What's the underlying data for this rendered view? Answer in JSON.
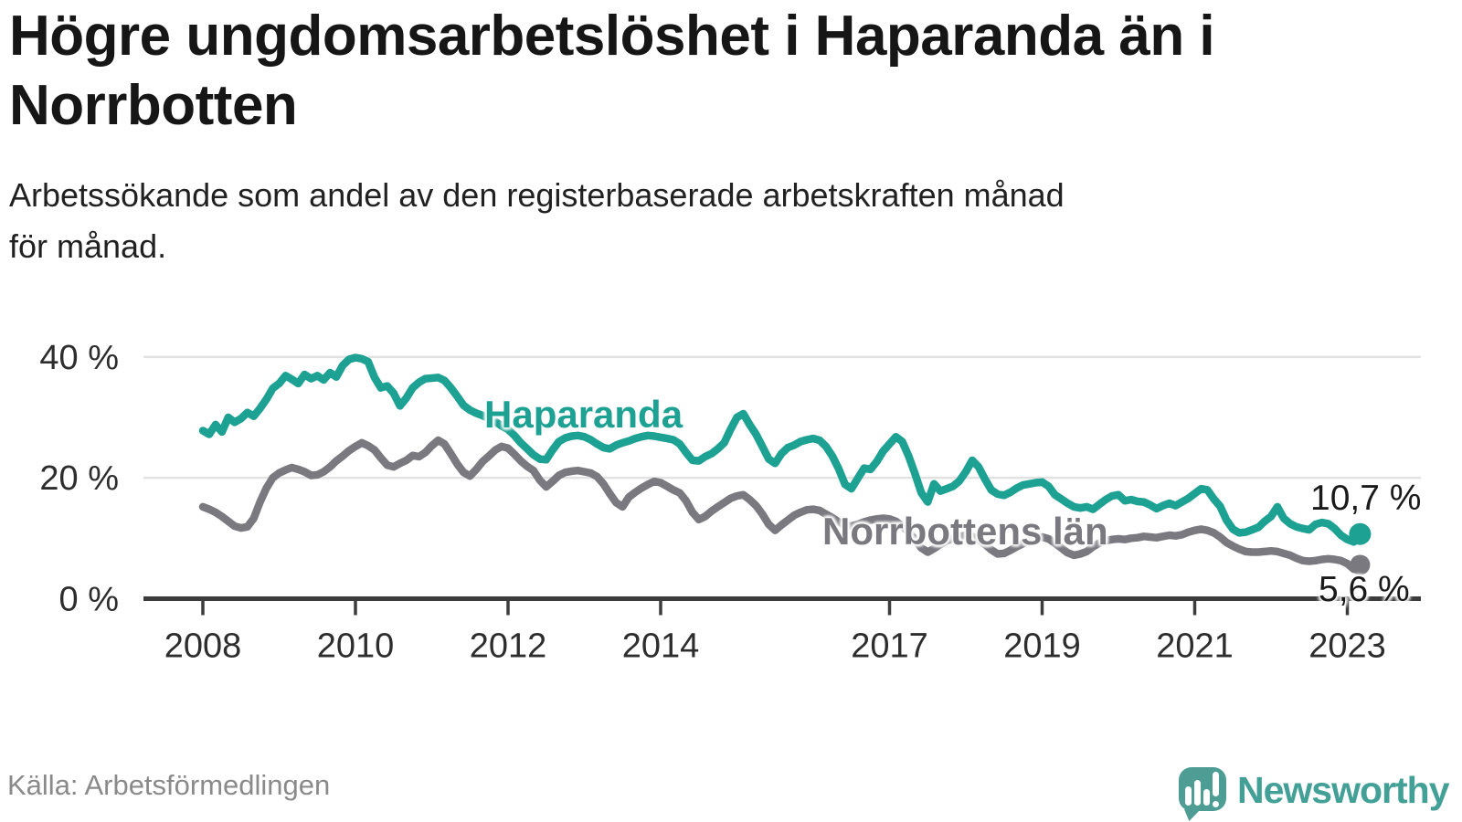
{
  "title": {
    "line1": "Högre ungdomsarbetslöshet i Haparanda än i",
    "line2": "Norrbotten"
  },
  "subtitle": {
    "line1": "Arbetssökande som andel av den registerbaserade arbetskraften månad",
    "line2": "för månad."
  },
  "footer": {
    "source": "Källa: Arbetsförmedlingen",
    "brand": "Newsworthy"
  },
  "colors": {
    "haparanda": "#1CA193",
    "norrbotten": "#7B7980",
    "grid": "#E2E2E2",
    "axis": "#3C3C3C",
    "tick_text": "#2D2D2D",
    "title_text": "#161616",
    "value_label_text": "#1A1A1A",
    "source_text": "#8A8A8A",
    "logo_icon": "#4D9D95",
    "logo_text": "#42A096"
  },
  "chart_data": {
    "type": "line",
    "title": "Högre ungdomsarbetslöshet i Haparanda än i Norrbotten",
    "subtitle": "Arbetssökande som andel av den registerbaserade arbetskraften månad för månad.",
    "x_unit": "month",
    "x_start_year": 2008.0,
    "x_step_years": 0.0833333,
    "xlim": [
      2007.2,
      2024.0
    ],
    "ylim": [
      0,
      47
    ],
    "grid": "horizontal",
    "legend_position": "inline-labels",
    "y_ticks": [
      {
        "v": 0,
        "label": "0 %"
      },
      {
        "v": 20,
        "label": "20 %"
      },
      {
        "v": 40,
        "label": "40 %"
      }
    ],
    "x_ticks": [
      {
        "year": 2008,
        "label": "2008"
      },
      {
        "year": 2010,
        "label": "2010"
      },
      {
        "year": 2012,
        "label": "2012"
      },
      {
        "year": 2014,
        "label": "2014"
      },
      {
        "year": 2017,
        "label": "2017"
      },
      {
        "year": 2019,
        "label": "2019"
      },
      {
        "year": 2021,
        "label": "2021"
      },
      {
        "year": 2023,
        "label": "2023"
      }
    ],
    "series": [
      {
        "name": "Haparanda",
        "color": "#1CA193",
        "end_label": "10,7 %",
        "last_value": 10.7,
        "values": [
          27.8,
          27.2,
          28.8,
          27.6,
          30.0,
          29.2,
          29.8,
          30.8,
          30.2,
          31.5,
          33.0,
          34.8,
          35.6,
          36.9,
          36.3,
          35.6,
          37.1,
          36.4,
          36.9,
          36.2,
          37.4,
          36.7,
          38.6,
          39.6,
          39.9,
          39.7,
          39.2,
          36.6,
          34.9,
          35.2,
          34.0,
          31.9,
          33.2,
          34.9,
          35.8,
          36.4,
          36.5,
          36.6,
          36.1,
          34.9,
          33.5,
          32.0,
          31.2,
          30.7,
          30.3,
          29.8,
          29.3,
          28.6,
          28.0,
          27.0,
          25.8,
          24.8,
          23.8,
          23.1,
          23.0,
          24.6,
          26.0,
          26.6,
          26.9,
          27.0,
          26.8,
          26.3,
          25.6,
          25.0,
          24.8,
          25.4,
          25.8,
          26.1,
          26.5,
          26.8,
          27.0,
          26.9,
          26.7,
          26.5,
          26.3,
          25.6,
          24.2,
          22.9,
          22.8,
          23.5,
          24.0,
          24.8,
          25.8,
          28.0,
          30.0,
          30.6,
          28.8,
          27.2,
          25.2,
          23.1,
          22.4,
          24.0,
          25.0,
          25.4,
          26.0,
          26.3,
          26.5,
          26.2,
          25.2,
          23.6,
          21.5,
          18.9,
          18.2,
          19.9,
          21.6,
          21.4,
          22.7,
          24.4,
          25.6,
          26.8,
          26.0,
          23.6,
          20.7,
          17.5,
          16.0,
          19.0,
          17.8,
          18.2,
          18.6,
          19.5,
          21.0,
          22.9,
          21.8,
          19.8,
          18.0,
          17.3,
          17.1,
          17.6,
          18.3,
          18.8,
          19.0,
          19.2,
          19.3,
          18.6,
          17.2,
          16.5,
          15.8,
          15.2,
          15.0,
          15.2,
          14.8,
          15.6,
          16.4,
          17.0,
          17.2,
          16.2,
          16.4,
          16.1,
          16.0,
          15.5,
          14.9,
          15.4,
          15.8,
          15.4,
          16.0,
          16.6,
          17.4,
          18.2,
          18.0,
          16.5,
          15.3,
          13.0,
          11.5,
          10.9,
          11.0,
          11.4,
          11.8,
          12.8,
          13.6,
          15.2,
          13.3,
          12.4,
          11.9,
          11.6,
          11.4,
          12.3,
          12.6,
          12.4,
          11.6,
          10.5,
          9.8,
          9.4,
          10.7
        ]
      },
      {
        "name": "Norrbottens län",
        "color": "#7B7980",
        "end_label": "5,6 %",
        "last_value": 5.6,
        "values": [
          15.2,
          14.8,
          14.3,
          13.6,
          12.8,
          12.0,
          11.7,
          11.9,
          13.3,
          16.0,
          18.3,
          20.0,
          20.8,
          21.3,
          21.7,
          21.4,
          21.0,
          20.4,
          20.5,
          21.0,
          21.8,
          22.8,
          23.6,
          24.5,
          25.2,
          25.8,
          25.3,
          24.6,
          23.3,
          22.1,
          21.8,
          22.4,
          22.9,
          23.7,
          23.5,
          24.2,
          25.3,
          26.2,
          25.6,
          24.0,
          22.3,
          20.9,
          20.3,
          21.4,
          22.7,
          23.6,
          24.6,
          25.2,
          24.9,
          23.9,
          22.8,
          21.9,
          21.2,
          19.6,
          18.5,
          19.4,
          20.4,
          20.9,
          21.1,
          21.2,
          21.0,
          20.8,
          20.2,
          19.0,
          17.4,
          15.9,
          15.2,
          16.8,
          17.6,
          18.3,
          18.9,
          19.4,
          19.2,
          18.6,
          18.0,
          17.5,
          16.2,
          14.3,
          13.1,
          13.6,
          14.5,
          15.2,
          15.9,
          16.6,
          17.0,
          17.2,
          16.4,
          15.4,
          14.0,
          12.3,
          11.3,
          12.2,
          13.0,
          13.8,
          14.3,
          14.7,
          14.8,
          14.6,
          14.0,
          13.4,
          12.7,
          12.2,
          12.0,
          12.3,
          12.7,
          13.0,
          13.2,
          13.3,
          13.2,
          12.8,
          12.0,
          11.0,
          9.8,
          8.4,
          7.7,
          8.3,
          9.0,
          9.6,
          10.0,
          10.3,
          10.5,
          10.3,
          9.8,
          9.0,
          8.1,
          7.4,
          7.5,
          8.0,
          8.6,
          9.1,
          9.6,
          10.0,
          10.2,
          9.9,
          9.2,
          8.4,
          7.6,
          7.2,
          7.4,
          7.8,
          8.6,
          9.2,
          9.6,
          9.8,
          9.9,
          9.8,
          10.0,
          10.1,
          10.3,
          10.2,
          10.1,
          10.3,
          10.5,
          10.4,
          10.6,
          11.0,
          11.3,
          11.5,
          11.3,
          10.9,
          10.2,
          9.3,
          8.7,
          8.2,
          7.8,
          7.7,
          7.7,
          7.8,
          7.9,
          7.8,
          7.5,
          7.2,
          6.7,
          6.3,
          6.2,
          6.3,
          6.5,
          6.6,
          6.5,
          6.3,
          5.8,
          4.9,
          5.6
        ]
      }
    ]
  }
}
